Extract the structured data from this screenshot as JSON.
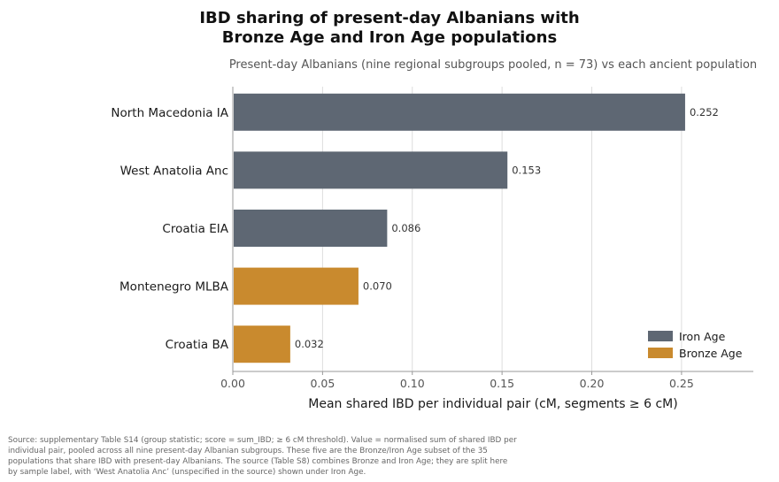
{
  "chart_data": {
    "type": "bar",
    "orientation": "horizontal",
    "title_lines": [
      "IBD sharing of present-day Albanians with",
      "Bronze Age and Iron Age populations"
    ],
    "subtitle": "Present-day Albanians (nine regional subgroups pooled, n = 73) vs each ancient population",
    "xlabel": "Mean shared IBD per individual pair  (cM, segments ≥ 6 cM)",
    "xlim": [
      0,
      0.29
    ],
    "xticks": [
      0.0,
      0.05,
      0.1,
      0.15,
      0.2,
      0.25
    ],
    "xtick_labels": [
      "0.00",
      "0.05",
      "0.10",
      "0.15",
      "0.20",
      "0.25"
    ],
    "grid": "vertical",
    "legend_position": "bottom-right",
    "categories": [
      "North Macedonia IA",
      "West Anatolia Anc",
      "Croatia EIA",
      "Montenegro MLBA",
      "Croatia BA"
    ],
    "values": [
      0.252,
      0.153,
      0.086,
      0.07,
      0.032
    ],
    "value_labels": [
      "0.252",
      "0.153",
      "0.086",
      "0.070",
      "0.032"
    ],
    "groups": [
      "Iron Age",
      "Iron Age",
      "Iron Age",
      "Bronze Age",
      "Bronze Age"
    ],
    "legend": [
      {
        "name": "Iron Age",
        "color": "#5e6773"
      },
      {
        "name": "Bronze Age",
        "color": "#c98a2e"
      }
    ]
  },
  "source_lines": [
    "Source: supplementary Table S14 (group statistic; score = sum_IBD; ≥ 6 cM threshold). Value = normalised sum of shared IBD per",
    "individual pair, pooled across all nine present-day Albanian subgroups. These five are the Bronze/Iron Age subset of the 35",
    "populations that share IBD with present-day Albanians. The source (Table S8) combines Bronze and Iron Age; they are split here",
    "by sample label, with ‘West Anatolia Anc’ (unspecified in the source) shown under Iron Age."
  ]
}
